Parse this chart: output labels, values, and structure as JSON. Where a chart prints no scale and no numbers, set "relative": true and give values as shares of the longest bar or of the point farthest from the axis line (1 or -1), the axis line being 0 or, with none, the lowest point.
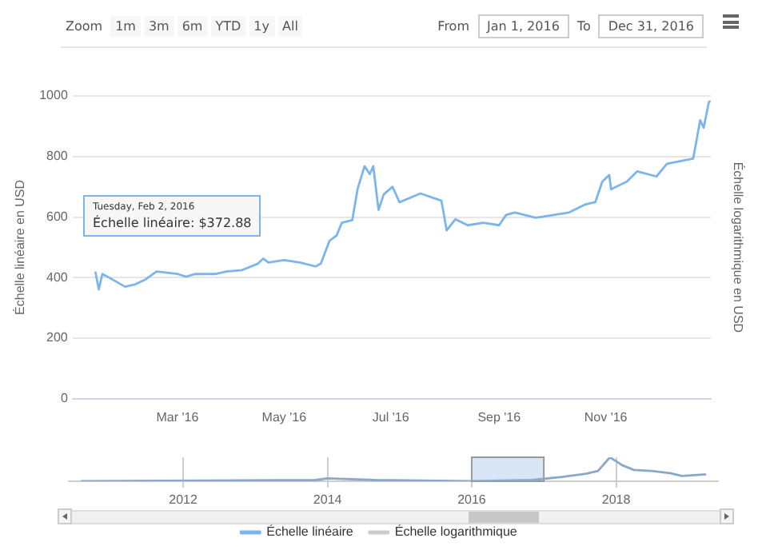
{
  "chart_data": [
    {
      "type": "line",
      "ylabel": "Échelle linéaire en USD",
      "y2label": "Échelle logarithmique en USD",
      "series": [
        {
          "name": "Échelle linéaire",
          "color": "#7cb5ec",
          "x": [
            "2016-01-14",
            "2016-01-16",
            "2016-01-18",
            "2016-01-21",
            "2016-01-31",
            "2016-02-02",
            "2016-02-06",
            "2016-02-12",
            "2016-02-18",
            "2016-03-01",
            "2016-03-06",
            "2016-03-11",
            "2016-03-23",
            "2016-03-29",
            "2016-04-07",
            "2016-04-16",
            "2016-04-19",
            "2016-04-22",
            "2016-05-01",
            "2016-05-10",
            "2016-05-19",
            "2016-05-22",
            "2016-05-27",
            "2016-05-31",
            "2016-06-03",
            "2016-06-09",
            "2016-06-12",
            "2016-06-16",
            "2016-06-19",
            "2016-06-21",
            "2016-06-24",
            "2016-06-27",
            "2016-07-02",
            "2016-07-06",
            "2016-07-18",
            "2016-07-30",
            "2016-08-02",
            "2016-08-07",
            "2016-08-14",
            "2016-08-23",
            "2016-09-01",
            "2016-09-05",
            "2016-09-10",
            "2016-09-22",
            "2016-10-11",
            "2016-10-20",
            "2016-10-26",
            "2016-10-30",
            "2016-11-03",
            "2016-11-04",
            "2016-11-13",
            "2016-11-19",
            "2016-11-30",
            "2016-12-06",
            "2016-12-21",
            "2016-12-25",
            "2016-12-27",
            "2016-12-30",
            "2016-12-31"
          ],
          "values": [
            420,
            361,
            412,
            403,
            370,
            372.88,
            378,
            395,
            420,
            412,
            403,
            412,
            412,
            420,
            425,
            446,
            463,
            450,
            458,
            450,
            437,
            446,
            522,
            539,
            581,
            590,
            692,
            768,
            742,
            768,
            624,
            675,
            700,
            649,
            678,
            654,
            556,
            593,
            573,
            581,
            573,
            607,
            615,
            598,
            615,
            641,
            649,
            717,
            739,
            692,
            717,
            751,
            734,
            776,
            793,
            920,
            895,
            980,
            983
          ]
        },
        {
          "name": "Échelle logarithmique",
          "color": "#cccccc"
        }
      ],
      "xlim": [
        "2016-01-01",
        "2016-12-31"
      ],
      "xticks": [
        {
          "value": "2016-03-01",
          "label": "Mar '16"
        },
        {
          "value": "2016-05-01",
          "label": "May '16"
        },
        {
          "value": "2016-07-01",
          "label": "Jul '16"
        },
        {
          "value": "2016-09-01",
          "label": "Sep '16"
        },
        {
          "value": "2016-11-01",
          "label": "Nov '16"
        }
      ],
      "ylim": [
        0,
        1000
      ],
      "yticks": [
        0,
        200,
        400,
        600,
        800,
        1000
      ],
      "grid": "y",
      "legend": "bottom",
      "marker": "none",
      "line_style": "solid",
      "annotations": [
        "Tuesday, Feb 2, 2016\nÉchelle linéaire: $372.88",
        "Zoom",
        "1m",
        "3m",
        "6m",
        "YTD",
        "1y",
        "All",
        "From",
        "Jan 1, 2016",
        "To",
        "Dec 31, 2016"
      ]
    },
    {
      "type": "line",
      "relative": true,
      "series": [
        {
          "color": "#8aa8c8",
          "x": [
            "2010-08",
            "2013-11",
            "2014-01",
            "2014-09",
            "2016-01",
            "2016-11",
            "2017-04",
            "2017-08",
            "2017-10",
            "2017-12",
            "2018-02",
            "2018-04",
            "2018-07",
            "2018-10",
            "2018-12",
            "2019-04"
          ],
          "values": [
            0,
            0.05,
            0.12,
            0.05,
            0,
            0.05,
            0.18,
            0.31,
            0.43,
            1,
            0.67,
            0.47,
            0.43,
            0.34,
            0.22,
            0.29
          ]
        }
      ],
      "xlim": [
        "2010-06",
        "2019-06"
      ],
      "xticks": [
        "2012",
        "2014",
        "2016",
        "2018"
      ],
      "grid": "x",
      "legend": false,
      "marker": "none",
      "bands": [
        {
          "axis": "x",
          "from": "2016-01-01",
          "to": "2016-12-31",
          "color": "#cfe0f4"
        }
      ]
    }
  ]
}
